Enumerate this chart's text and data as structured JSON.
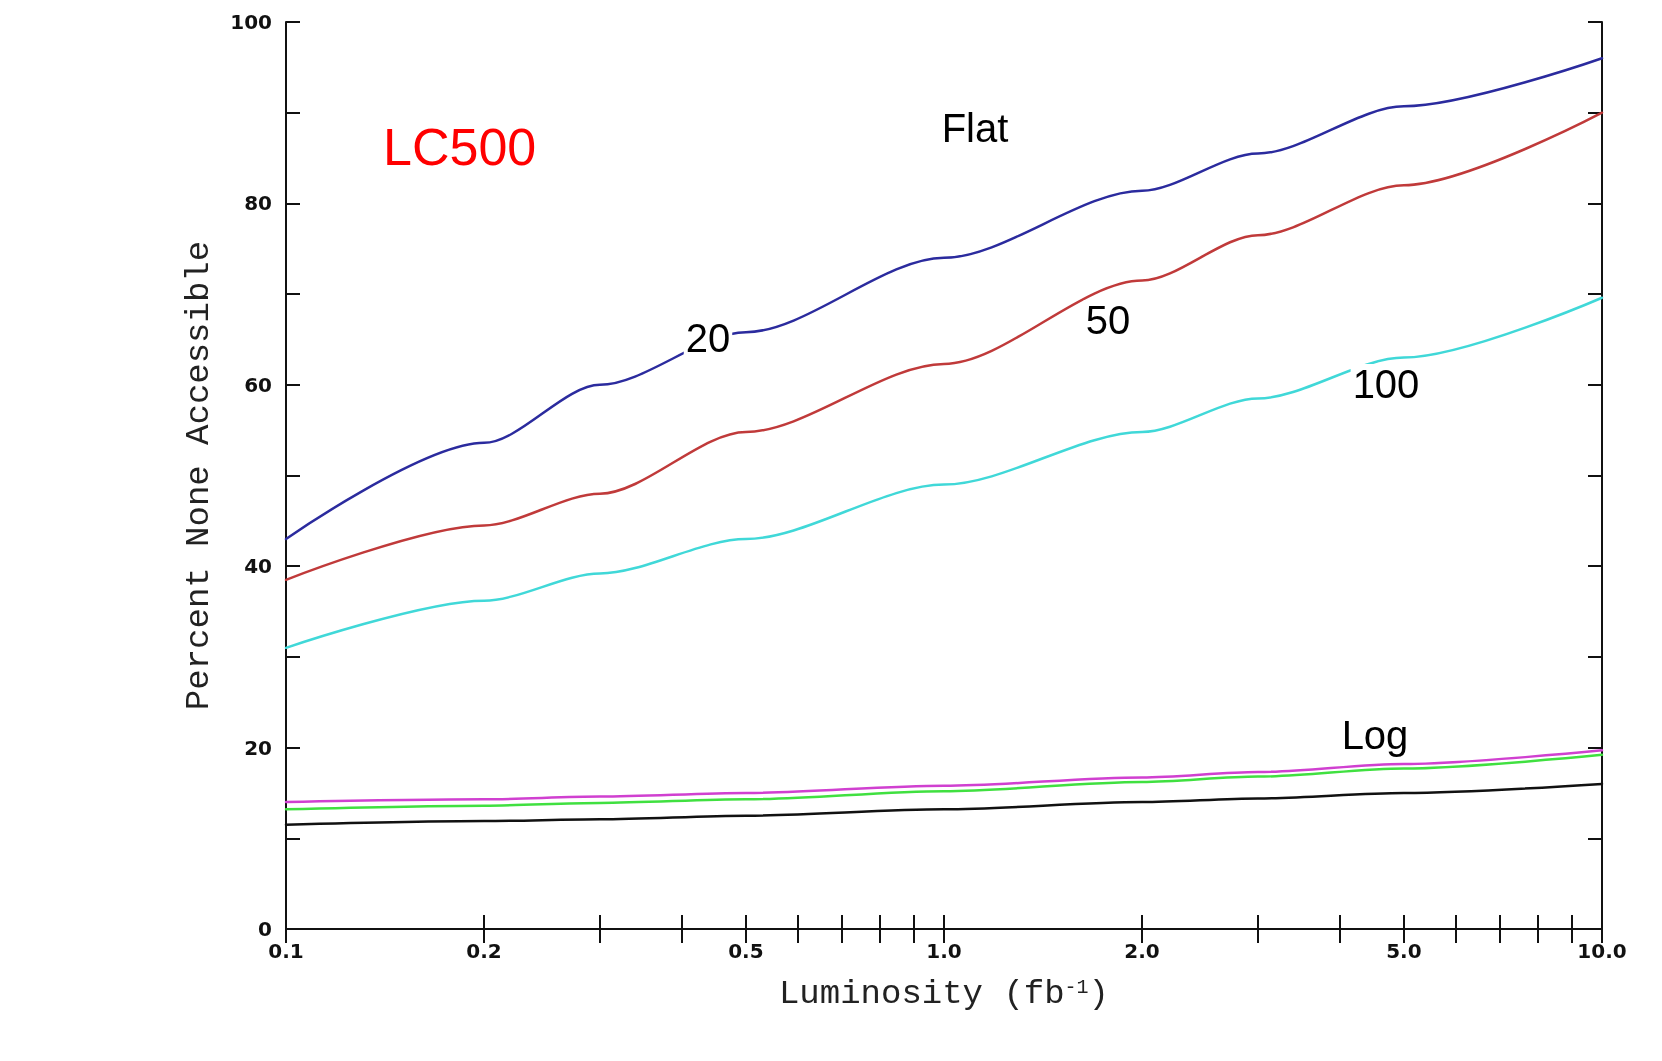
{
  "chart_data": {
    "type": "line",
    "title": "LC500",
    "xlabel": "Luminosity (fb$^{-1}$)",
    "ylabel": "Percent None Accessible",
    "log": "x",
    "x": [
      0.1,
      0.2,
      0.3,
      0.5,
      1,
      2,
      3,
      5,
      10
    ],
    "series": [
      {
        "color": "#2b2b9e",
        "values": [
          43,
          53.6,
          60,
          65.8,
          74,
          81.4,
          85.5,
          90.7,
          96
        ]
      },
      {
        "color": "#c03a3a",
        "values": [
          38.5,
          44.5,
          48,
          54.8,
          62.3,
          71.5,
          76.5,
          82,
          90
        ]
      },
      {
        "color": "#40d8d8",
        "values": [
          31,
          36.2,
          39.2,
          43,
          49,
          54.8,
          58.5,
          63,
          69.6
        ]
      },
      {
        "color": "#d040d0",
        "values": [
          14,
          14.3,
          14.6,
          15,
          15.8,
          16.7,
          17.3,
          18.2,
          19.7
        ]
      },
      {
        "color": "#40e040",
        "values": [
          13.2,
          13.6,
          13.9,
          14.3,
          15.2,
          16.2,
          16.8,
          17.7,
          19.2
        ]
      },
      {
        "color": "#111111",
        "values": [
          11.5,
          11.9,
          12.1,
          12.5,
          13.2,
          14,
          14.4,
          15,
          16
        ]
      }
    ],
    "annotations": [
      "Flat",
      "20",
      "50",
      "100",
      "Log"
    ],
    "xlim": [
      0.1,
      10
    ],
    "ylim": [
      0,
      100
    ],
    "xticks": [
      0.1,
      0.2,
      {
        "value": 0.3,
        "label": null
      },
      {
        "value": 0.4,
        "label": null
      },
      0.5,
      {
        "value": 0.6,
        "label": null
      },
      {
        "value": 0.7,
        "label": null
      },
      {
        "value": 0.8,
        "label": null
      },
      {
        "value": 0.9,
        "label": null
      },
      {
        "value": 1,
        "label": "1.0"
      },
      {
        "value": 2,
        "label": "2.0"
      },
      {
        "value": 3,
        "label": null
      },
      {
        "value": 4,
        "label": null
      },
      {
        "value": 5,
        "label": "5.0"
      },
      {
        "value": 6,
        "label": null
      },
      {
        "value": 7,
        "label": null
      },
      {
        "value": 8,
        "label": null
      },
      {
        "value": 9,
        "label": null
      },
      {
        "value": 10,
        "label": "10.0"
      }
    ],
    "yticks": [
      0,
      {
        "value": 10,
        "label": null
      },
      20,
      {
        "value": 30,
        "label": null
      },
      40,
      {
        "value": 50,
        "label": null
      },
      60,
      {
        "value": 70,
        "label": null
      },
      80,
      {
        "value": 90,
        "label": null
      },
      100
    ],
    "grid": false,
    "line_style": "solid",
    "marker": "none"
  }
}
